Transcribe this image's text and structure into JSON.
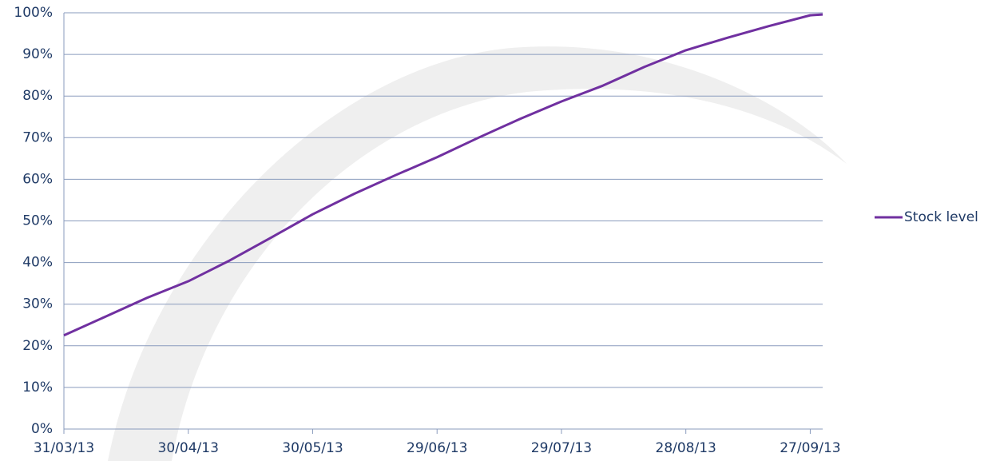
{
  "chart_data": {
    "type": "line",
    "x": [
      "2013-03-31",
      "2013-04-10",
      "2013-04-20",
      "2013-04-30",
      "2013-05-10",
      "2013-05-20",
      "2013-05-30",
      "2013-06-09",
      "2013-06-19",
      "2013-06-29",
      "2013-07-09",
      "2013-07-19",
      "2013-07-29",
      "2013-08-08",
      "2013-08-18",
      "2013-08-28",
      "2013-09-07",
      "2013-09-17",
      "2013-09-27",
      "2013-09-30"
    ],
    "series": [
      {
        "name": "Stock level",
        "color": "#7030a0",
        "values": [
          22.5,
          27,
          31.5,
          35.5,
          40.5,
          46,
          51.6,
          56.5,
          61,
          65.3,
          70,
          74.5,
          78.7,
          82.5,
          87,
          91,
          94,
          96.8,
          99.4,
          99.6
        ]
      }
    ],
    "xlim": [
      "2013-03-31",
      "2013-09-30"
    ],
    "xticks": [
      {
        "value": "2013-03-31",
        "label": "31/03/13"
      },
      {
        "value": "2013-04-30",
        "label": "30/04/13"
      },
      {
        "value": "2013-05-30",
        "label": "30/05/13"
      },
      {
        "value": "2013-06-29",
        "label": "29/06/13"
      },
      {
        "value": "2013-07-29",
        "label": "29/07/13"
      },
      {
        "value": "2013-08-28",
        "label": "28/08/13"
      },
      {
        "value": "2013-09-27",
        "label": "27/09/13"
      }
    ],
    "ylim": [
      0,
      100
    ],
    "yticks": [
      {
        "value": 0,
        "label": "0%"
      },
      {
        "value": 10,
        "label": "10%"
      },
      {
        "value": 20,
        "label": "20%"
      },
      {
        "value": 30,
        "label": "30%"
      },
      {
        "value": 40,
        "label": "40%"
      },
      {
        "value": 50,
        "label": "50%"
      },
      {
        "value": 60,
        "label": "60%"
      },
      {
        "value": 70,
        "label": "70%"
      },
      {
        "value": 80,
        "label": "80%"
      },
      {
        "value": 90,
        "label": "90%"
      },
      {
        "value": 100,
        "label": "100%"
      }
    ],
    "grid": true,
    "legend": "right"
  }
}
